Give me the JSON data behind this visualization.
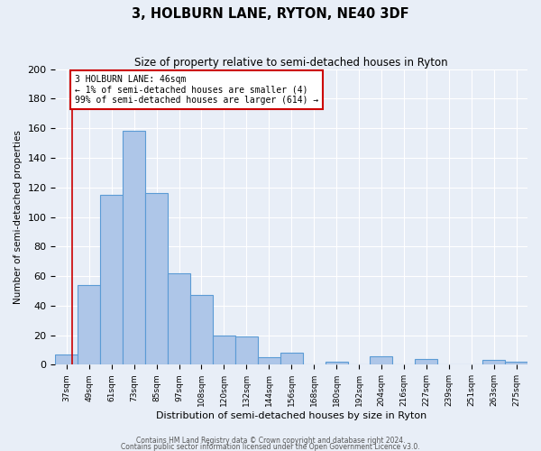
{
  "title": "3, HOLBURN LANE, RYTON, NE40 3DF",
  "subtitle": "Size of property relative to semi-detached houses in Ryton",
  "xlabel": "Distribution of semi-detached houses by size in Ryton",
  "ylabel": "Number of semi-detached properties",
  "bin_labels": [
    "37sqm",
    "49sqm",
    "61sqm",
    "73sqm",
    "85sqm",
    "97sqm",
    "108sqm",
    "120sqm",
    "132sqm",
    "144sqm",
    "156sqm",
    "168sqm",
    "180sqm",
    "192sqm",
    "204sqm",
    "216sqm",
    "227sqm",
    "239sqm",
    "251sqm",
    "263sqm",
    "275sqm"
  ],
  "bar_heights": [
    7,
    54,
    115,
    158,
    116,
    62,
    47,
    20,
    19,
    5,
    8,
    0,
    2,
    0,
    6,
    0,
    4,
    0,
    0,
    3,
    2
  ],
  "bar_color": "#aec6e8",
  "bar_edge_color": "#5b9bd5",
  "marker_line_color": "#cc0000",
  "annotation_box_edge_color": "#cc0000",
  "ylim": [
    0,
    200
  ],
  "yticks": [
    0,
    20,
    40,
    60,
    80,
    100,
    120,
    140,
    160,
    180,
    200
  ],
  "background_color": "#e8eef7",
  "footer1": "Contains HM Land Registry data © Crown copyright and database right 2024.",
  "footer2": "Contains public sector information licensed under the Open Government Licence v3.0."
}
